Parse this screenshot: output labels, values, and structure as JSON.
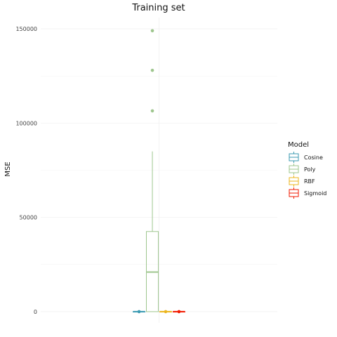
{
  "chart_data": {
    "type": "boxplot",
    "title": "Training set",
    "xlabel": "",
    "ylabel": "MSE",
    "ylim": [
      -6000,
      156000
    ],
    "y_ticks": [
      0,
      50000,
      100000,
      150000
    ],
    "y_tick_labels": [
      "0",
      "50000",
      "100000",
      "150000"
    ],
    "grid": true,
    "legend": {
      "title": "Model",
      "position": "right",
      "entries": [
        "Cosine",
        "Poly",
        "RBF",
        "Sigmoid"
      ]
    },
    "series": [
      {
        "name": "Cosine",
        "color": "#3B9AB2",
        "min": 0,
        "q1": 0,
        "median": 0,
        "q3": 0,
        "max": 0,
        "outliers": [],
        "mean": 0
      },
      {
        "name": "Poly",
        "color": "#9EC68E",
        "min": 0,
        "q1": 0,
        "median": 21000,
        "q3": 42500,
        "max": 85000,
        "outliers": [
          106500,
          128000,
          149000
        ]
      },
      {
        "name": "RBF",
        "color": "#EBB51D",
        "min": 0,
        "q1": 0,
        "median": 0,
        "q3": 0,
        "max": 0,
        "outliers": [],
        "mean": 0
      },
      {
        "name": "Sigmoid",
        "color": "#F21A00",
        "min": 0,
        "q1": 0,
        "median": 0,
        "q3": 0,
        "max": 0,
        "outliers": [],
        "mean": 0
      }
    ]
  }
}
